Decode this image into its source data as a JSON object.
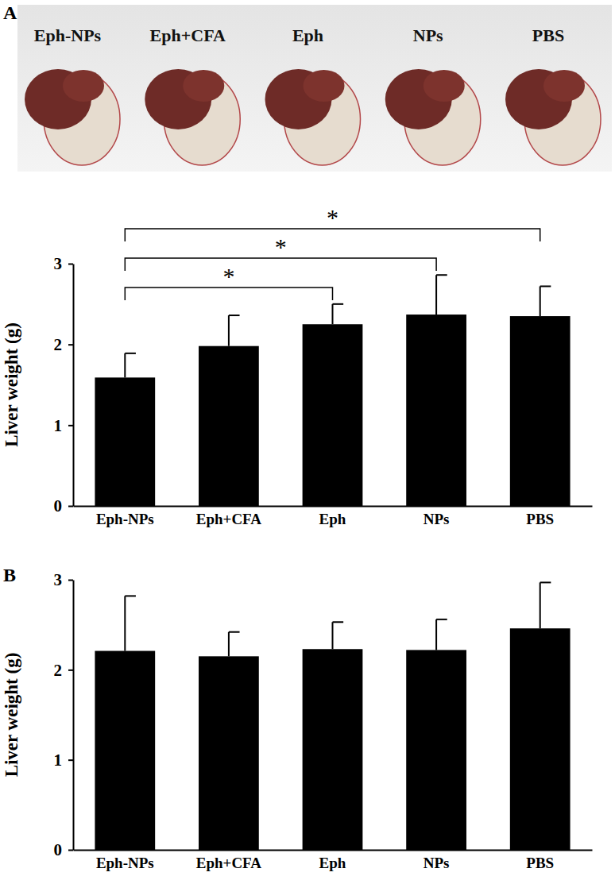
{
  "photo": {
    "labels": [
      "Eph-NPs",
      "Eph+CFA",
      "Eph",
      "NPs",
      "PBS"
    ]
  },
  "chart_data": [
    {
      "type": "bar",
      "panel": "A",
      "categories": [
        "Eph-NPs",
        "Eph+CFA",
        "Eph",
        "NPs",
        "PBS"
      ],
      "values": [
        1.59,
        1.98,
        2.25,
        2.37,
        2.35
      ],
      "errors": [
        0.3,
        0.38,
        0.25,
        0.49,
        0.37
      ],
      "color": "#000000",
      "y_label": "Liver weight (g)",
      "ylim": [
        0,
        3
      ],
      "yticks": [
        0,
        1,
        2,
        3
      ],
      "significance": [
        {
          "from": 0,
          "to": 2,
          "label": "*"
        },
        {
          "from": 0,
          "to": 3,
          "label": "*"
        },
        {
          "from": 0,
          "to": 4,
          "label": "*"
        }
      ]
    },
    {
      "type": "bar",
      "panel": "B",
      "categories": [
        "Eph-NPs",
        "Eph+CFA",
        "Eph",
        "NPs",
        "PBS"
      ],
      "values": [
        2.21,
        2.15,
        2.23,
        2.22,
        2.46
      ],
      "errors": [
        0.61,
        0.27,
        0.3,
        0.34,
        0.51
      ],
      "color": "#000000",
      "y_label": "Liver weight (g)",
      "ylim": [
        0,
        3
      ],
      "yticks": [
        0,
        1,
        2,
        3
      ],
      "significance": []
    }
  ]
}
